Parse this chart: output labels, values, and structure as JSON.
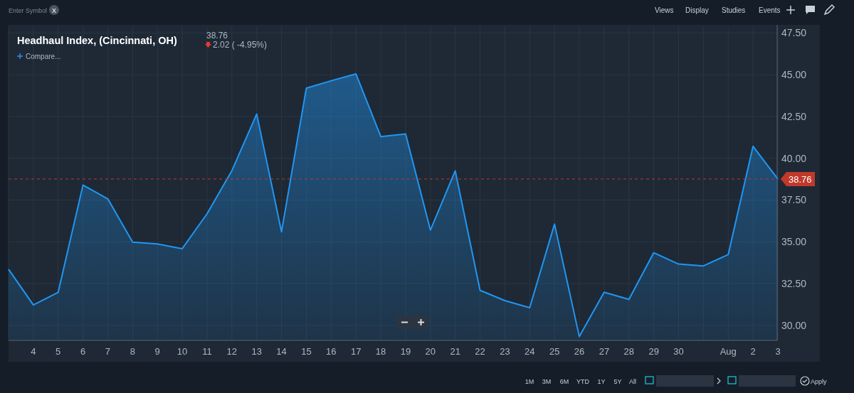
{
  "chart_data": {
    "type": "area",
    "title": "Headhaul Index, (Cincinnati, OH)",
    "categories": [
      null,
      "4",
      "5",
      "6",
      "7",
      "8",
      "9",
      "10",
      "11",
      "12",
      "13",
      "14",
      "15",
      "16",
      "17",
      "18",
      "19",
      "20",
      "21",
      "22",
      "23",
      "24",
      "25",
      "26",
      "27",
      "28",
      "29",
      "30",
      null,
      "Aug",
      "2",
      "3"
    ],
    "series": [
      {
        "color": "#2196f3",
        "values": [
          33.36,
          31.22,
          31.98,
          38.4,
          37.57,
          34.98,
          34.87,
          34.59,
          36.68,
          39.26,
          42.65,
          35.6,
          44.2,
          44.64,
          45.05,
          41.3,
          41.46,
          35.7,
          39.25,
          32.1,
          31.48,
          31.06,
          36.06,
          29.33,
          31.98,
          31.56,
          34.35,
          33.67,
          33.56,
          34.24,
          40.72,
          38.76
        ]
      }
    ],
    "ylim": [
      29.1,
      47.9
    ],
    "yticks": [
      {
        "value": 30,
        "label": "30.00"
      },
      {
        "value": 32.5,
        "label": "32.50"
      },
      {
        "value": 35,
        "label": "35.00"
      },
      {
        "value": 37.5,
        "label": "37.50"
      },
      {
        "value": 40,
        "label": "40.00"
      },
      {
        "value": 42.5,
        "label": "42.50"
      },
      {
        "value": 45,
        "label": "45.00"
      },
      {
        "value": 47.5,
        "label": "47.50"
      }
    ],
    "grid": true,
    "ref_lines": [
      {
        "axis": "y",
        "value": 38.76,
        "label": "38.76",
        "color": "#c0392b",
        "line_style": "dashed"
      }
    ],
    "annotations": [
      "38.76",
      "2.02 ( -4.95%)",
      "Compare...",
      "Enter Symbol",
      "X",
      "Views",
      "Display",
      "Studies",
      "Events",
      "1M",
      "3M",
      "6M",
      "YTD",
      "1Y",
      "5Y",
      "All",
      "Apply"
    ]
  }
}
